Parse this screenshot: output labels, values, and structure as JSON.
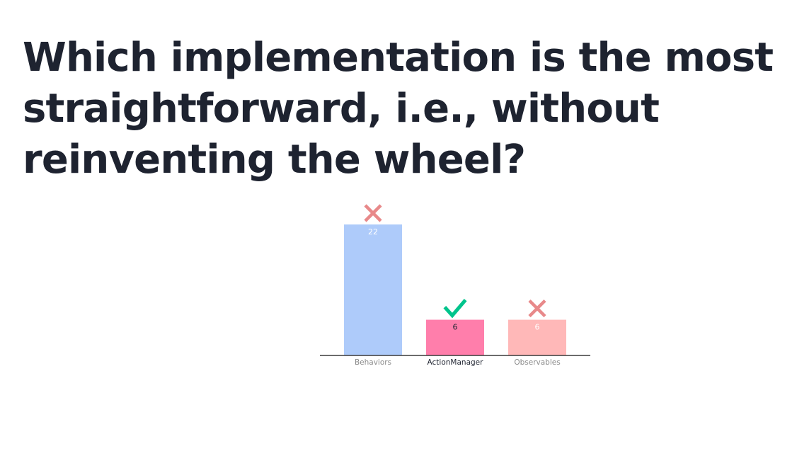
{
  "question": {
    "title": "Which implementation is the most straightforward, i.e., without reinventing the wheel?"
  },
  "colors": {
    "title": "#1e2330",
    "baseline": "#3a3a3a",
    "correct_mark": "#00c48c",
    "incorrect_mark": "#e8898a",
    "muted_label": "#8a8a8a",
    "highlight_label": "#1e2330"
  },
  "chart_data": {
    "type": "bar",
    "title": "",
    "xlabel": "",
    "ylabel": "",
    "categories": [
      "Behaviors",
      "ActionManager",
      "Observables"
    ],
    "values": [
      22,
      6,
      6
    ],
    "value_labels": [
      "22",
      "6",
      "6"
    ],
    "ylim": [
      0,
      22
    ],
    "grid": false,
    "legend": "none",
    "bar_colors": [
      "#aecbfa",
      "#ff7eab",
      "#ffb8b8"
    ],
    "value_label_colors": [
      "#ffffff",
      "#1e2330",
      "#ffffff"
    ],
    "category_label_colors": [
      "#8a8a8a",
      "#1e2330",
      "#8a8a8a"
    ],
    "marks": [
      "cross",
      "check",
      "cross"
    ],
    "correct": [
      false,
      true,
      false
    ]
  }
}
